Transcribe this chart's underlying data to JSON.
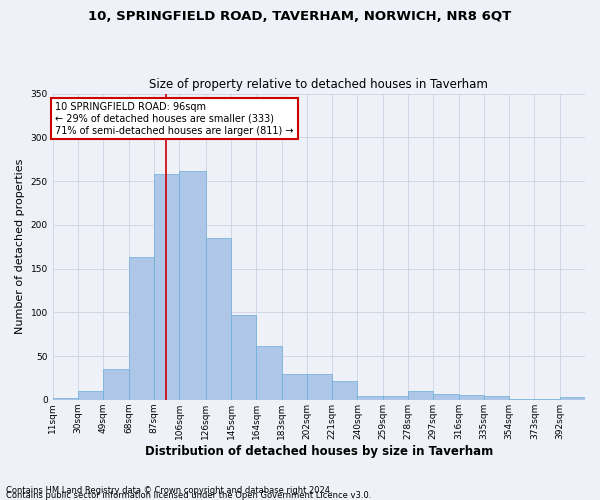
{
  "title1": "10, SPRINGFIELD ROAD, TAVERHAM, NORWICH, NR8 6QT",
  "title2": "Size of property relative to detached houses in Taverham",
  "xlabel": "Distribution of detached houses by size in Taverham",
  "ylabel": "Number of detached properties",
  "footer1": "Contains HM Land Registry data © Crown copyright and database right 2024.",
  "footer2": "Contains public sector information licensed under the Open Government Licence v3.0.",
  "bin_labels": [
    "11sqm",
    "30sqm",
    "49sqm",
    "68sqm",
    "87sqm",
    "106sqm",
    "126sqm",
    "145sqm",
    "164sqm",
    "183sqm",
    "202sqm",
    "221sqm",
    "240sqm",
    "259sqm",
    "278sqm",
    "297sqm",
    "316sqm",
    "335sqm",
    "354sqm",
    "373sqm",
    "392sqm"
  ],
  "bar_heights": [
    2,
    10,
    35,
    163,
    258,
    262,
    185,
    97,
    62,
    30,
    30,
    22,
    4,
    4,
    10,
    7,
    5,
    4,
    1,
    1,
    3
  ],
  "bar_color": "#aec6e8",
  "bar_edge_color": "#6baed6",
  "vline_x": 96,
  "vline_color": "#cc0000",
  "annotation_text": "10 SPRINGFIELD ROAD: 96sqm\n← 29% of detached houses are smaller (333)\n71% of semi-detached houses are larger (811) →",
  "annotation_box_color": "#ffffff",
  "annotation_box_edge": "#cc0000",
  "ylim": [
    0,
    350
  ],
  "yticks": [
    0,
    50,
    100,
    150,
    200,
    250,
    300,
    350
  ],
  "grid_color": "#d0d8e8",
  "bg_color": "#eef2f8",
  "title1_fontsize": 9.5,
  "title2_fontsize": 8.5,
  "xlabel_fontsize": 8.5,
  "ylabel_fontsize": 8,
  "tick_fontsize": 6.5,
  "annotation_fontsize": 7,
  "footer_fontsize": 6
}
